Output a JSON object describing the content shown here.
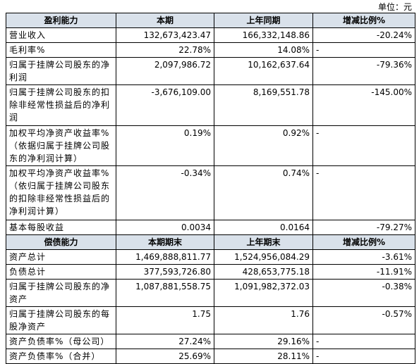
{
  "unit": "单位：元",
  "sections": [
    {
      "header": [
        "盈利能力",
        "本期",
        "上年同期",
        "增减比例%"
      ],
      "rows": [
        [
          "营业收入",
          "132,673,423.47",
          "166,332,148.86",
          "-20.24%"
        ],
        [
          "毛利率%",
          "22.78%",
          "14.08%",
          "-"
        ],
        [
          "归属于挂牌公司股东的净利润",
          "2,097,986.72",
          "10,162,637.64",
          "-79.36%"
        ],
        [
          "归属于挂牌公司股东的扣除非经常性损益后的净利润",
          "-3,676,109.00",
          "8,169,551.78",
          "-145.00%"
        ],
        [
          "加权平均净资产收益率%（依据归属于挂牌公司股东的净利润计算）",
          "0.19%",
          "0.92%",
          "-"
        ],
        [
          "加权平均净资产收益率%（依归属于挂牌公司股东的扣除非经常性损益后的净利润计算）",
          "-0.34%",
          "0.74%",
          "-"
        ],
        [
          "基本每股收益",
          "0.0034",
          "0.0164",
          "-79.27%"
        ]
      ]
    },
    {
      "header": [
        "偿债能力",
        "本期期末",
        "上年期末",
        "增减比例%"
      ],
      "rows": [
        [
          "资产总计",
          "1,469,888,811.77",
          "1,524,956,084.29",
          "-3.61%"
        ],
        [
          "负债总计",
          "377,593,726.80",
          "428,653,775.18",
          "-11.91%"
        ],
        [
          "归属于挂牌公司股东的净资产",
          "1,087,881,558.75",
          "1,091,982,372.03",
          "-0.38%"
        ],
        [
          "归属于挂牌公司股东的每股净资产",
          "1.75",
          "1.76",
          "-0.57%"
        ],
        [
          "资产负债率%（母公司）",
          "27.24%",
          "29.16%",
          "-"
        ],
        [
          "资产负债率%（合并）",
          "25.69%",
          "28.11%",
          "-"
        ]
      ]
    }
  ]
}
